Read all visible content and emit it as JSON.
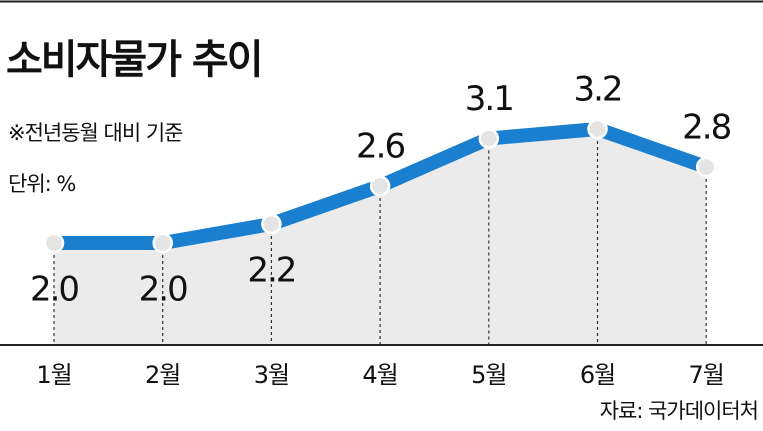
{
  "chart_data": {
    "type": "line",
    "title": "소비자물가 추이",
    "subtitle": "※전년동월 대비 기준",
    "unit": "단위: %",
    "source": "자료: 국가데이터처",
    "categories": [
      "1월",
      "2월",
      "3월",
      "4월",
      "5월",
      "6월",
      "7월"
    ],
    "values": [
      2.0,
      2.0,
      2.2,
      2.6,
      3.1,
      3.2,
      2.8
    ],
    "value_labels": [
      "2.0",
      "2.0",
      "2.2",
      "2.6",
      "3.1",
      "3.2",
      "2.8"
    ],
    "color": "#1b7fd0"
  }
}
